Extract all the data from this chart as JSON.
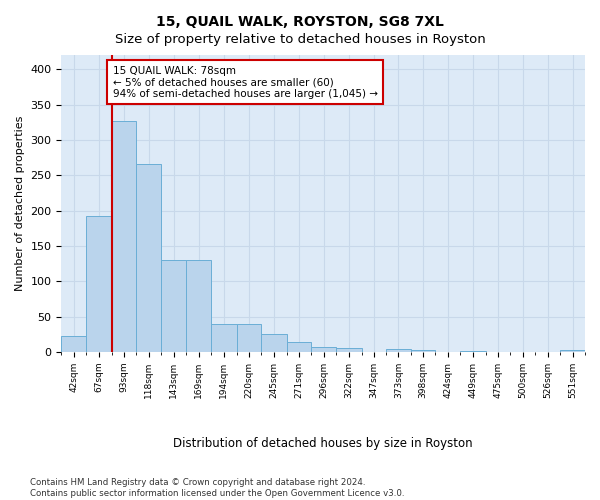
{
  "title": "15, QUAIL WALK, ROYSTON, SG8 7XL",
  "subtitle": "Size of property relative to detached houses in Royston",
  "xlabel": "Distribution of detached houses by size in Royston",
  "ylabel": "Number of detached properties",
  "categories": [
    "42sqm",
    "67sqm",
    "93sqm",
    "118sqm",
    "143sqm",
    "169sqm",
    "194sqm",
    "220sqm",
    "245sqm",
    "271sqm",
    "296sqm",
    "322sqm",
    "347sqm",
    "373sqm",
    "398sqm",
    "424sqm",
    "449sqm",
    "475sqm",
    "500sqm",
    "526sqm",
    "551sqm"
  ],
  "values": [
    23,
    193,
    327,
    266,
    130,
    130,
    39,
    39,
    25,
    14,
    7,
    5,
    0,
    4,
    3,
    0,
    2,
    0,
    0,
    0,
    3
  ],
  "bar_color": "#bad4ec",
  "bar_edge_color": "#6aaed6",
  "grid_color": "#c8d8ea",
  "background_color": "#ddeaf7",
  "property_line_color": "#cc0000",
  "annotation_line1": "15 QUAIL WALK: 78sqm",
  "annotation_line2": "← 5% of detached houses are smaller (60)",
  "annotation_line3": "94% of semi-detached houses are larger (1,045) →",
  "annotation_box_color": "#ffffff",
  "annotation_box_edge": "#cc0000",
  "footer_line1": "Contains HM Land Registry data © Crown copyright and database right 2024.",
  "footer_line2": "Contains public sector information licensed under the Open Government Licence v3.0.",
  "ylim": [
    0,
    420
  ],
  "bin_edges": [
    29.5,
    54.5,
    80.5,
    105.5,
    130.5,
    156.5,
    181.5,
    207.5,
    232.5,
    258.5,
    283.5,
    308.5,
    334.5,
    359.5,
    384.5,
    409.5,
    434.5,
    460.5,
    485.5,
    510.5,
    536.5,
    561.5
  ]
}
